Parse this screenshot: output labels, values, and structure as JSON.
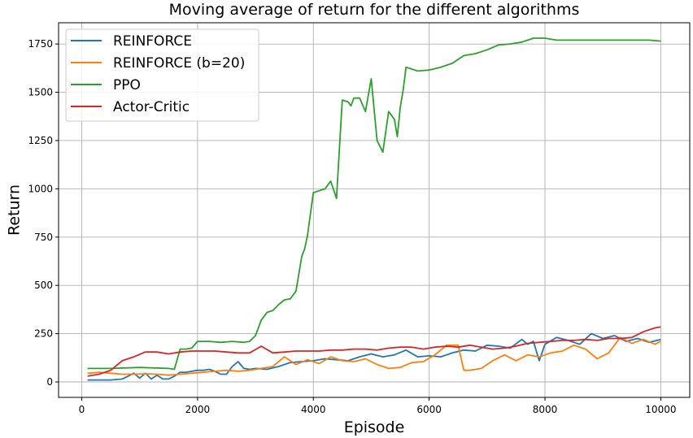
{
  "chart_data": {
    "type": "line",
    "title": "Moving average of return for the different algorithms",
    "xlabel": "Episode",
    "ylabel": "Return",
    "xlim": [
      -400,
      10500
    ],
    "ylim": [
      -80,
      1860
    ],
    "xticks": [
      0,
      2000,
      4000,
      6000,
      8000,
      10000
    ],
    "yticks": [
      0,
      250,
      500,
      750,
      1000,
      1250,
      1500,
      1750
    ],
    "grid": true,
    "legend_position": "top-left",
    "series": [
      {
        "name": "REINFORCE",
        "color": "#1f77b4",
        "x": [
          100,
          300,
          500,
          700,
          800,
          900,
          1000,
          1100,
          1200,
          1300,
          1400,
          1500,
          1600,
          1700,
          1800,
          1900,
          2000,
          2100,
          2200,
          2300,
          2400,
          2500,
          2600,
          2700,
          2800,
          2900,
          3000,
          3200,
          3400,
          3600,
          3800,
          4000,
          4200,
          4400,
          4600,
          4800,
          5000,
          5200,
          5400,
          5600,
          5800,
          6000,
          6200,
          6400,
          6600,
          6800,
          7000,
          7200,
          7400,
          7600,
          7700,
          7800,
          7900,
          8000,
          8200,
          8400,
          8600,
          8800,
          9000,
          9200,
          9400,
          9600,
          9800,
          10000
        ],
        "y": [
          10,
          10,
          10,
          15,
          30,
          45,
          20,
          45,
          15,
          35,
          15,
          15,
          30,
          50,
          50,
          55,
          60,
          60,
          65,
          55,
          40,
          40,
          80,
          105,
          70,
          65,
          70,
          65,
          80,
          100,
          105,
          110,
          120,
          115,
          110,
          130,
          145,
          130,
          140,
          165,
          130,
          135,
          130,
          150,
          165,
          160,
          190,
          185,
          175,
          220,
          195,
          210,
          110,
          195,
          230,
          215,
          195,
          250,
          225,
          240,
          210,
          225,
          205,
          220
        ]
      },
      {
        "name": "REINFORCE (b=20)",
        "color": "#ff7f0e",
        "x": [
          100,
          300,
          500,
          700,
          900,
          1100,
          1300,
          1500,
          1700,
          1900,
          2100,
          2300,
          2500,
          2700,
          2900,
          3100,
          3300,
          3500,
          3700,
          3900,
          4100,
          4300,
          4500,
          4700,
          4900,
          5100,
          5300,
          5500,
          5700,
          5900,
          6100,
          6300,
          6500,
          6600,
          6700,
          6900,
          7100,
          7300,
          7500,
          7700,
          7900,
          8100,
          8300,
          8500,
          8700,
          8900,
          9100,
          9300,
          9500,
          9700,
          9900,
          10000
        ],
        "y": [
          45,
          50,
          45,
          40,
          40,
          42,
          40,
          35,
          40,
          45,
          50,
          55,
          60,
          55,
          60,
          70,
          80,
          130,
          90,
          115,
          95,
          130,
          110,
          105,
          120,
          90,
          70,
          75,
          100,
          105,
          140,
          190,
          190,
          60,
          60,
          70,
          110,
          140,
          110,
          140,
          130,
          150,
          160,
          190,
          170,
          120,
          150,
          230,
          200,
          220,
          195,
          210
        ]
      },
      {
        "name": "PPO",
        "color": "#2ca02c",
        "x": [
          100,
          500,
          1000,
          1500,
          1600,
          1700,
          1800,
          1900,
          2000,
          2200,
          2400,
          2600,
          2800,
          2900,
          3000,
          3100,
          3200,
          3300,
          3400,
          3500,
          3600,
          3700,
          3800,
          3850,
          3900,
          4000,
          4100,
          4200,
          4300,
          4400,
          4500,
          4600,
          4650,
          4700,
          4800,
          4900,
          5000,
          5100,
          5200,
          5300,
          5400,
          5450,
          5500,
          5550,
          5600,
          5700,
          5800,
          6000,
          6200,
          6400,
          6600,
          6800,
          7000,
          7200,
          7400,
          7600,
          7800,
          8000,
          8200,
          8400,
          8600,
          8800,
          9000,
          9200,
          9400,
          9600,
          9800,
          10000
        ],
        "y": [
          70,
          70,
          75,
          70,
          65,
          170,
          170,
          175,
          210,
          210,
          205,
          210,
          205,
          210,
          240,
          320,
          360,
          370,
          400,
          425,
          430,
          470,
          650,
          690,
          760,
          980,
          990,
          1000,
          1040,
          950,
          1460,
          1450,
          1430,
          1470,
          1470,
          1400,
          1570,
          1250,
          1190,
          1400,
          1360,
          1270,
          1420,
          1510,
          1630,
          1620,
          1610,
          1615,
          1630,
          1650,
          1690,
          1700,
          1720,
          1745,
          1750,
          1760,
          1780,
          1780,
          1770,
          1770,
          1770,
          1770,
          1770,
          1770,
          1770,
          1770,
          1770,
          1765
        ]
      },
      {
        "name": "Actor-Critic",
        "color": "#d62728",
        "x": [
          100,
          300,
          500,
          700,
          900,
          1100,
          1300,
          1500,
          1700,
          1900,
          2100,
          2300,
          2500,
          2700,
          2900,
          3100,
          3300,
          3500,
          3700,
          3900,
          4100,
          4300,
          4500,
          4700,
          4900,
          5100,
          5300,
          5500,
          5700,
          5900,
          6100,
          6300,
          6500,
          6700,
          6900,
          7100,
          7300,
          7500,
          7700,
          7900,
          8100,
          8300,
          8500,
          8700,
          8900,
          9100,
          9300,
          9500,
          9700,
          9900,
          10000
        ],
        "y": [
          30,
          40,
          60,
          110,
          130,
          155,
          155,
          145,
          155,
          160,
          160,
          160,
          155,
          150,
          150,
          185,
          150,
          155,
          160,
          160,
          160,
          165,
          165,
          170,
          170,
          165,
          175,
          180,
          180,
          170,
          180,
          185,
          180,
          190,
          180,
          170,
          175,
          185,
          200,
          205,
          210,
          215,
          215,
          220,
          215,
          225,
          225,
          230,
          260,
          280,
          285
        ]
      }
    ]
  }
}
